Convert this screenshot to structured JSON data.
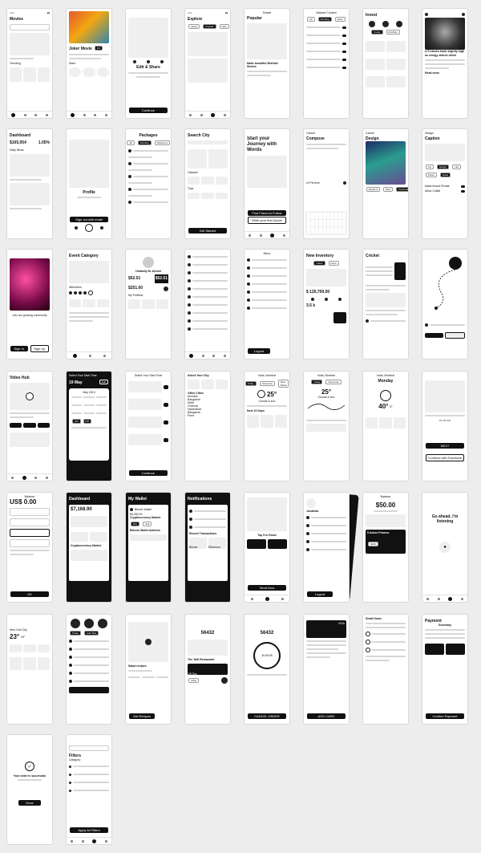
{
  "screens": {
    "movies": {
      "title": "Movies",
      "section": "Trending"
    },
    "joker": {
      "title": "Joker Movie",
      "rating": "9.8",
      "subtitle": "Stars"
    },
    "edit_share": {
      "title": "Edit & Share",
      "button": "Continue"
    },
    "explore": {
      "title": "Explore"
    },
    "simple": {
      "header": "Simple",
      "title": "Popular",
      "caption": "Make beautiful Wishlist Stories"
    },
    "wanted": {
      "header": "Wanted Content"
    },
    "invest": {
      "title": "Invest"
    },
    "article": {
      "caption": "U.S stocks trade slightly high as energy shares climb",
      "link": "Read more"
    },
    "dashboard": {
      "title": "Dashboard",
      "value1": "$105,054",
      "value2": "1.05%",
      "section": "Daily News"
    },
    "profile": {
      "title": "Profile",
      "button": "Sign out with email"
    },
    "packages": {
      "title": "Packages"
    },
    "search_city": {
      "title": "Search City",
      "section1": "Glasses",
      "section2": "Tops",
      "button": "Get Started"
    },
    "journey": {
      "title": "Start your Journey with Words",
      "button1": "Find Friend to Follow",
      "button2": "Write your first Quote"
    },
    "compose": {
      "header": "Cancel",
      "title": "Compose",
      "to": "Ui Perform"
    },
    "design": {
      "header": "Cancel",
      "title": "Design"
    },
    "caption": {
      "header": "Design",
      "title": "Caption",
      "toggle1": "Make Board Private",
      "toggle2": "Allow Collab"
    },
    "community": {
      "title": "Join our growing community",
      "button1": "Sign In",
      "button2": "Sign Up"
    },
    "event": {
      "title": "Event Category",
      "section": "Attendees"
    },
    "hudasily": {
      "name": "Hudasily M. Arnold",
      "price1": "$52.51",
      "price2": "$52.51",
      "price3": "$251.00",
      "section": "My Portfolio"
    },
    "list": {
      "rows": 10
    },
    "menu": {
      "header": "Menu",
      "button": "Logout"
    },
    "inventory": {
      "title": "New Inventory",
      "value": "$ 120,700.00",
      "value2": "3.5 k"
    },
    "cricket": {
      "title": "Cricket"
    },
    "map_route": {
      "title": "Route"
    },
    "video_hub": {
      "title": "Video Hub"
    },
    "select_time": {
      "title": "Select Your Start Time",
      "date": "19 May",
      "month": "May 2019"
    },
    "select_time2": {
      "title": "Select Your Start Time",
      "button": "Continue"
    },
    "select_city": {
      "title": "Select Your City",
      "section": "Other Cities",
      "cities": [
        "Mumbai",
        "Bangalore",
        "Delhi",
        "Chennai",
        "Hyderabad",
        "Bangalore",
        "Pune"
      ]
    },
    "weather_india": {
      "city": "India, Mumbai",
      "temp": "25°",
      "desc": "Clouds & sun",
      "section": "Next 10 Days"
    },
    "weather_india2": {
      "city": "India, Mumbai",
      "temp": "25°",
      "desc": "Clouds & sun"
    },
    "weather_monday": {
      "city": "India, Mumbai",
      "day": "Monday",
      "temp": "40°",
      "low": "8°"
    },
    "otp": {
      "button": "NEXT",
      "link": "Continue with Facebook"
    },
    "balance": {
      "title": "Balance",
      "amount": "US$ 0.00",
      "button": "OK"
    },
    "dashboard_dark": {
      "title": "Dashboard",
      "value": "$7,168.90",
      "section": "Cryptocurrency Market"
    },
    "wallet": {
      "title": "My Wallet",
      "coin": "Bitcoin Wallet",
      "amount": "$5,283.00",
      "section": "Cryptocurrency Market",
      "section2": "Bitcoin Wallet Address"
    },
    "notifications": {
      "title": "Notifications",
      "section": "Recent Transactions",
      "coin1": "Bitcoin",
      "coin2": "Ethereum"
    },
    "top_charts": {
      "title": "Top 5 In Rome",
      "button": "Send Now"
    },
    "jonathan": {
      "name": "Jonathan",
      "button": "Logout"
    },
    "balance2": {
      "title": "Balance",
      "amount": "$50.00",
      "promo": "5 Active Promos",
      "button": "NEW"
    },
    "listening": {
      "title": "Go ahead, I'm listening"
    },
    "weather_ny": {
      "city": "New York City",
      "temp": "23°",
      "temp2": "29°"
    },
    "todo": {
      "tasks": 8
    },
    "salad": {
      "title": "Salad recipes",
      "button": "Get Recipes"
    },
    "otp2": {
      "code": "56432",
      "restaurant": "The Taiti Restaurant",
      "date": "28 Dec"
    },
    "otp3": {
      "code": "56432",
      "timer": "30:45:05",
      "button": "CANCEL ORDER"
    },
    "card": {
      "brand": "VISA",
      "button": "ADD CARD"
    },
    "small_home": {
      "title": "Small Home"
    },
    "payment": {
      "title": "Payment",
      "section": "Summary",
      "button": "Confirm Payment"
    },
    "order_success": {
      "title": "Your order is successful",
      "button": "Done"
    },
    "filters": {
      "title": "Filters",
      "section": "Category",
      "button": "Apply All Filters"
    }
  }
}
